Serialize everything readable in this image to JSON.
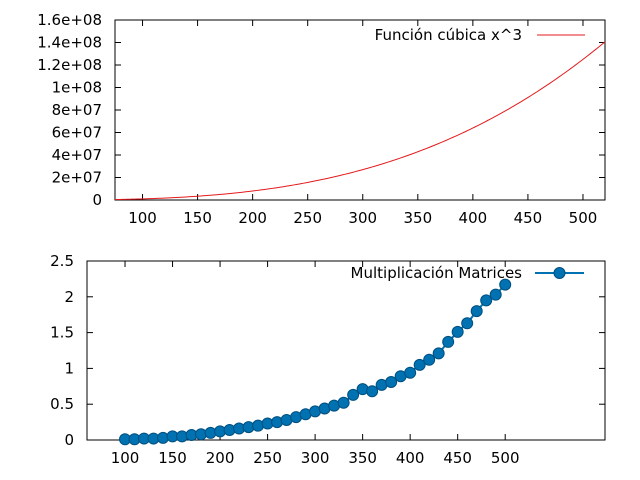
{
  "chart_data": [
    {
      "type": "line",
      "title": "",
      "xlabel": "",
      "ylabel": "",
      "xlim": [
        75,
        520
      ],
      "ylim": [
        0,
        160000000
      ],
      "x_ticks": [
        100,
        150,
        200,
        250,
        300,
        350,
        400,
        450,
        500
      ],
      "x_tick_labels": [
        "100",
        "150",
        "200",
        "250",
        "300",
        "350",
        "400",
        "450",
        "500"
      ],
      "y_ticks": [
        0,
        20000000,
        40000000,
        60000000,
        80000000,
        100000000,
        120000000,
        140000000,
        160000000
      ],
      "y_tick_labels": [
        "0",
        "2e+07",
        "4e+07",
        "6e+07",
        "8e+07",
        "1e+08",
        "1.2e+08",
        "1.4e+08",
        "1.6e+08"
      ],
      "grid": false,
      "legend_position": "top-right",
      "series": [
        {
          "name": "Función cúbica x^3",
          "color": "#e41a1c",
          "marker": "none",
          "function": "x^3",
          "x": [
            75,
            100,
            125,
            150,
            175,
            200,
            225,
            250,
            275,
            300,
            325,
            350,
            375,
            400,
            425,
            450,
            475,
            500,
            520
          ],
          "values": [
            421875,
            1000000,
            1953125,
            3375000,
            5359375,
            8000000,
            11390625,
            15625000,
            20796875,
            27000000,
            34328125,
            42875000,
            52734375,
            64000000,
            76765625,
            91125000,
            107171875,
            125000000,
            140608000
          ]
        }
      ]
    },
    {
      "type": "line",
      "title": "",
      "xlabel": "",
      "ylabel": "",
      "xlim": [
        60,
        605
      ],
      "ylim": [
        0,
        2.5
      ],
      "x_ticks": [
        100,
        150,
        200,
        250,
        300,
        350,
        400,
        450,
        500
      ],
      "x_tick_labels": [
        "100",
        "150",
        "200",
        "250",
        "300",
        "350",
        "400",
        "450",
        "500"
      ],
      "y_ticks": [
        0,
        0.5,
        1,
        1.5,
        2,
        2.5
      ],
      "y_tick_labels": [
        "0",
        "0.5",
        "1",
        "1.5",
        "2",
        "2.5"
      ],
      "grid": false,
      "legend_position": "top-right",
      "series": [
        {
          "name": "Multiplicación Matrices",
          "color": "#0072b2",
          "marker": "circle",
          "x": [
            100,
            110,
            120,
            130,
            140,
            150,
            160,
            170,
            180,
            190,
            200,
            210,
            220,
            230,
            240,
            250,
            260,
            270,
            280,
            290,
            300,
            310,
            320,
            330,
            340,
            350,
            360,
            370,
            380,
            390,
            400,
            410,
            420,
            430,
            440,
            450,
            460,
            470,
            480,
            490,
            500
          ],
          "values": [
            0.01,
            0.01,
            0.02,
            0.02,
            0.03,
            0.05,
            0.05,
            0.07,
            0.08,
            0.1,
            0.12,
            0.14,
            0.16,
            0.18,
            0.2,
            0.23,
            0.25,
            0.28,
            0.32,
            0.36,
            0.4,
            0.44,
            0.48,
            0.52,
            0.63,
            0.71,
            0.68,
            0.77,
            0.81,
            0.89,
            0.94,
            1.05,
            1.12,
            1.21,
            1.37,
            1.51,
            1.63,
            1.8,
            1.95,
            2.03,
            2.17
          ]
        }
      ]
    }
  ]
}
